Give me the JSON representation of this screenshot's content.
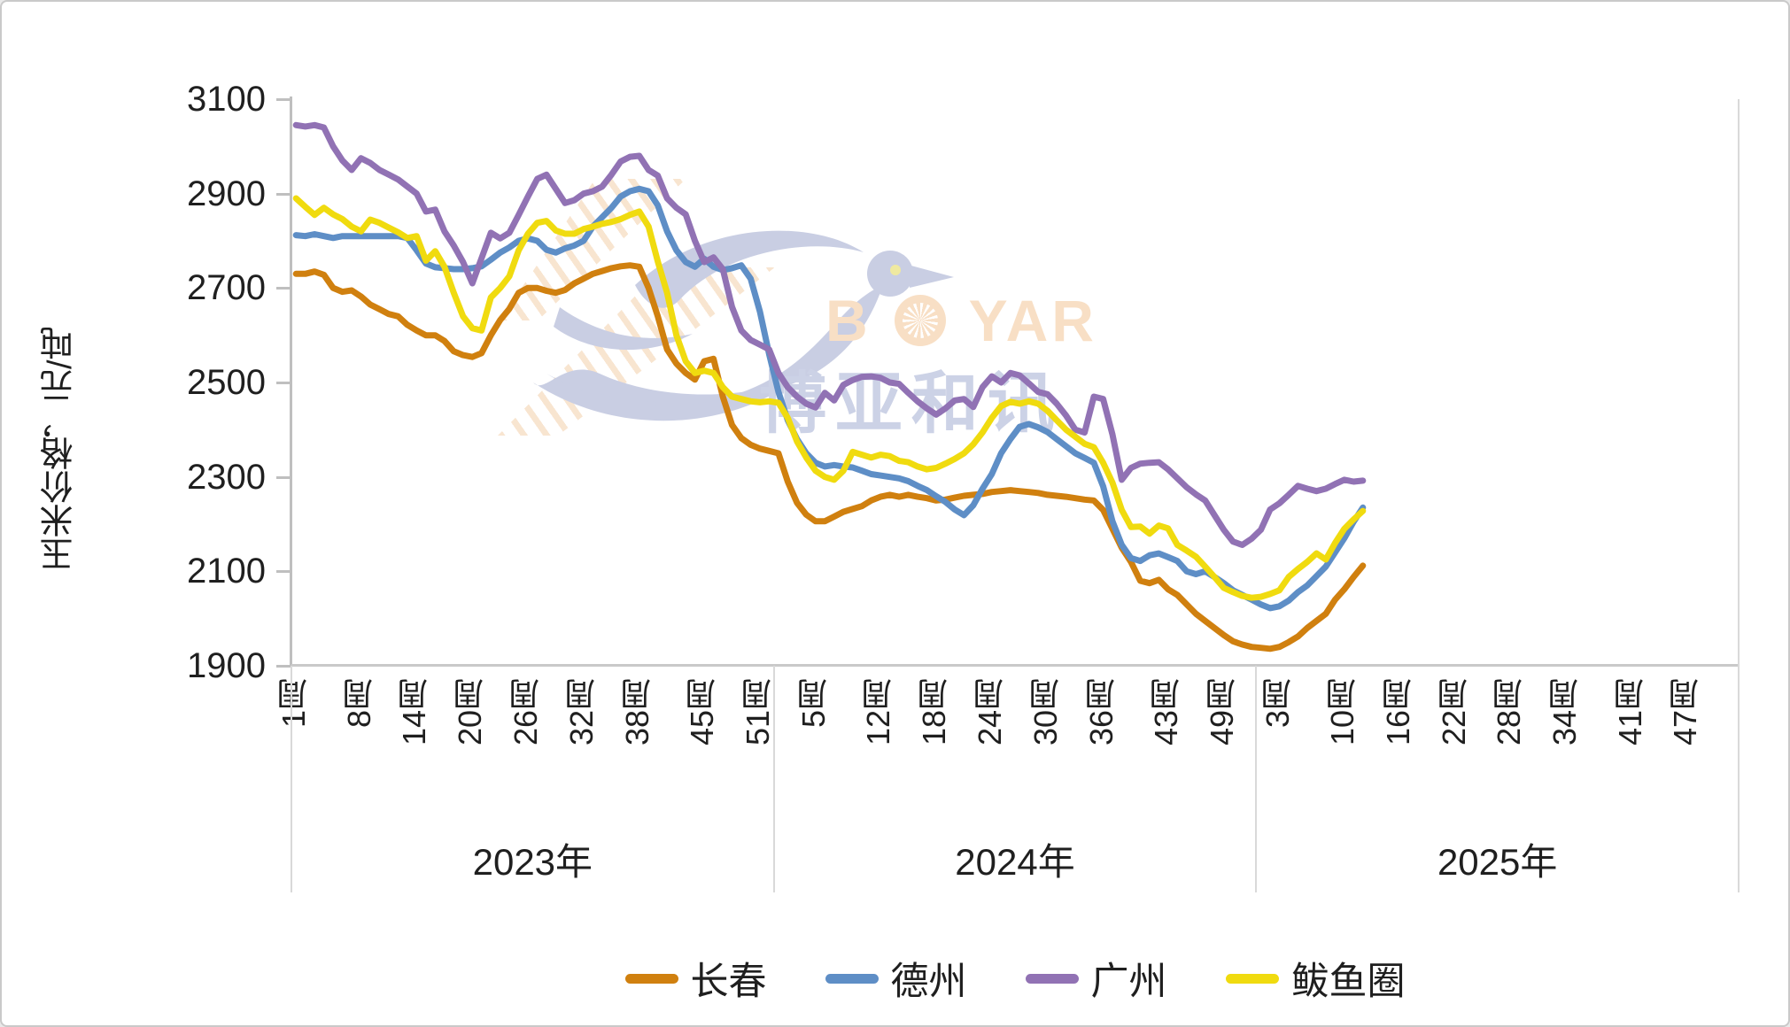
{
  "chart": {
    "y_axis": {
      "title": "玉米价格，元/吨"
    },
    "watermark": {
      "brand": "BOYAR",
      "brand_cn": "博亚和讯"
    }
  },
  "chart_data": {
    "type": "line",
    "title": "",
    "xlabel": "",
    "ylabel": "玉米价格，元/吨",
    "ylim": [
      1900,
      3100
    ],
    "y_ticks": [
      3100,
      2900,
      2700,
      2500,
      2300,
      2100,
      1900
    ],
    "grid": "off",
    "legend_position": "bottom",
    "x_unit": "周 (week), consecutive weeks 2023w1 - 2025w12",
    "x_structure": {
      "years": [
        {
          "label": "2023年",
          "weeks": 52,
          "week_tick_labels": [
            {
              "week": 1,
              "label": "1周"
            },
            {
              "week": 8,
              "label": "8周"
            },
            {
              "week": 14,
              "label": "14周"
            },
            {
              "week": 20,
              "label": "20周"
            },
            {
              "week": 26,
              "label": "26周"
            },
            {
              "week": 32,
              "label": "32周"
            },
            {
              "week": 38,
              "label": "38周"
            },
            {
              "week": 45,
              "label": "45周"
            },
            {
              "week": 51,
              "label": "51周"
            }
          ]
        },
        {
          "label": "2024年",
          "weeks": 52,
          "week_tick_labels": [
            {
              "week": 5,
              "label": "5周"
            },
            {
              "week": 12,
              "label": "12周"
            },
            {
              "week": 18,
              "label": "18周"
            },
            {
              "week": 24,
              "label": "24周"
            },
            {
              "week": 30,
              "label": "30周"
            },
            {
              "week": 36,
              "label": "36周"
            },
            {
              "week": 43,
              "label": "43周"
            },
            {
              "week": 49,
              "label": "49周"
            }
          ]
        },
        {
          "label": "2025年",
          "weeks": 52,
          "week_tick_labels": [
            {
              "week": 3,
              "label": "3周"
            },
            {
              "week": 10,
              "label": "10周"
            },
            {
              "week": 16,
              "label": "16周"
            },
            {
              "week": 22,
              "label": "22周"
            },
            {
              "week": 28,
              "label": "28周"
            },
            {
              "week": 34,
              "label": "34周"
            },
            {
              "week": 41,
              "label": "41周"
            },
            {
              "week": 47,
              "label": "47周"
            }
          ]
        }
      ]
    },
    "series": [
      {
        "name": "长春",
        "color": "#D0800F",
        "values": [
          2730,
          2730,
          2735,
          2728,
          2700,
          2692,
          2695,
          2682,
          2665,
          2655,
          2645,
          2640,
          2622,
          2610,
          2600,
          2600,
          2588,
          2566,
          2558,
          2554,
          2562,
          2600,
          2632,
          2656,
          2690,
          2700,
          2700,
          2694,
          2690,
          2696,
          2710,
          2720,
          2730,
          2736,
          2742,
          2746,
          2748,
          2745,
          2700,
          2640,
          2570,
          2540,
          2520,
          2506,
          2545,
          2550,
          2470,
          2410,
          2382,
          2368,
          2360,
          2355,
          2350,
          2290,
          2245,
          2220,
          2206,
          2206,
          2216,
          2226,
          2232,
          2238,
          2250,
          2258,
          2262,
          2258,
          2262,
          2258,
          2255,
          2250,
          2252,
          2256,
          2260,
          2262,
          2264,
          2268,
          2270,
          2272,
          2270,
          2268,
          2266,
          2262,
          2260,
          2258,
          2255,
          2252,
          2250,
          2230,
          2190,
          2150,
          2120,
          2080,
          2075,
          2082,
          2062,
          2050,
          2030,
          2010,
          1995,
          1980,
          1965,
          1952,
          1945,
          1940,
          1938,
          1936,
          1940,
          1950,
          1962,
          1980,
          1995,
          2010,
          2040,
          2062,
          2088,
          2112
        ]
      },
      {
        "name": "德州",
        "color": "#5E8EC6",
        "values": [
          2812,
          2810,
          2814,
          2810,
          2806,
          2810,
          2810,
          2810,
          2810,
          2810,
          2810,
          2810,
          2806,
          2780,
          2752,
          2744,
          2742,
          2740,
          2740,
          2742,
          2746,
          2760,
          2775,
          2786,
          2800,
          2805,
          2800,
          2781,
          2775,
          2784,
          2790,
          2800,
          2830,
          2850,
          2870,
          2894,
          2905,
          2910,
          2905,
          2875,
          2820,
          2780,
          2755,
          2745,
          2762,
          2745,
          2738,
          2742,
          2748,
          2720,
          2650,
          2560,
          2480,
          2420,
          2380,
          2350,
          2330,
          2322,
          2325,
          2322,
          2320,
          2313,
          2306,
          2303,
          2300,
          2297,
          2291,
          2281,
          2272,
          2259,
          2247,
          2231,
          2219,
          2240,
          2275,
          2306,
          2350,
          2380,
          2406,
          2412,
          2405,
          2395,
          2380,
          2365,
          2350,
          2340,
          2330,
          2280,
          2206,
          2156,
          2128,
          2122,
          2134,
          2138,
          2130,
          2122,
          2100,
          2094,
          2100,
          2088,
          2075,
          2060,
          2050,
          2040,
          2030,
          2022,
          2026,
          2038,
          2056,
          2070,
          2090,
          2110,
          2140,
          2170,
          2205,
          2235
        ]
      },
      {
        "name": "广州",
        "color": "#9172B4",
        "values": [
          3045,
          3042,
          3045,
          3040,
          3000,
          2970,
          2950,
          2975,
          2965,
          2950,
          2940,
          2930,
          2915,
          2900,
          2862,
          2866,
          2820,
          2790,
          2755,
          2710,
          2763,
          2817,
          2805,
          2817,
          2855,
          2894,
          2931,
          2940,
          2910,
          2880,
          2886,
          2900,
          2905,
          2915,
          2940,
          2968,
          2978,
          2980,
          2950,
          2938,
          2890,
          2870,
          2856,
          2800,
          2755,
          2765,
          2740,
          2660,
          2610,
          2590,
          2580,
          2570,
          2520,
          2490,
          2470,
          2455,
          2447,
          2478,
          2462,
          2495,
          2505,
          2512,
          2513,
          2510,
          2500,
          2497,
          2478,
          2460,
          2445,
          2432,
          2445,
          2462,
          2465,
          2448,
          2490,
          2513,
          2500,
          2520,
          2515,
          2498,
          2480,
          2475,
          2455,
          2430,
          2400,
          2394,
          2470,
          2465,
          2390,
          2294,
          2319,
          2328,
          2330,
          2331,
          2316,
          2297,
          2278,
          2263,
          2250,
          2219,
          2188,
          2163,
          2156,
          2169,
          2188,
          2231,
          2244,
          2262,
          2281,
          2275,
          2270,
          2275,
          2285,
          2294,
          2290,
          2292
        ]
      },
      {
        "name": "鲅鱼圈",
        "color": "#F0DB0F",
        "values": [
          2890,
          2872,
          2855,
          2870,
          2856,
          2846,
          2830,
          2820,
          2845,
          2838,
          2828,
          2818,
          2806,
          2810,
          2758,
          2778,
          2745,
          2690,
          2640,
          2615,
          2610,
          2680,
          2700,
          2725,
          2780,
          2815,
          2838,
          2842,
          2822,
          2815,
          2815,
          2825,
          2830,
          2836,
          2840,
          2846,
          2855,
          2862,
          2830,
          2756,
          2690,
          2600,
          2545,
          2520,
          2525,
          2520,
          2490,
          2470,
          2465,
          2460,
          2458,
          2460,
          2457,
          2425,
          2375,
          2341,
          2313,
          2300,
          2294,
          2313,
          2353,
          2347,
          2341,
          2347,
          2344,
          2334,
          2331,
          2322,
          2316,
          2319,
          2328,
          2338,
          2350,
          2369,
          2394,
          2425,
          2450,
          2459,
          2455,
          2460,
          2455,
          2440,
          2420,
          2400,
          2385,
          2370,
          2363,
          2330,
          2288,
          2230,
          2194,
          2195,
          2180,
          2197,
          2191,
          2156,
          2144,
          2131,
          2110,
          2088,
          2065,
          2056,
          2048,
          2044,
          2046,
          2052,
          2060,
          2088,
          2105,
          2120,
          2138,
          2125,
          2160,
          2190,
          2210,
          2228
        ]
      }
    ]
  }
}
